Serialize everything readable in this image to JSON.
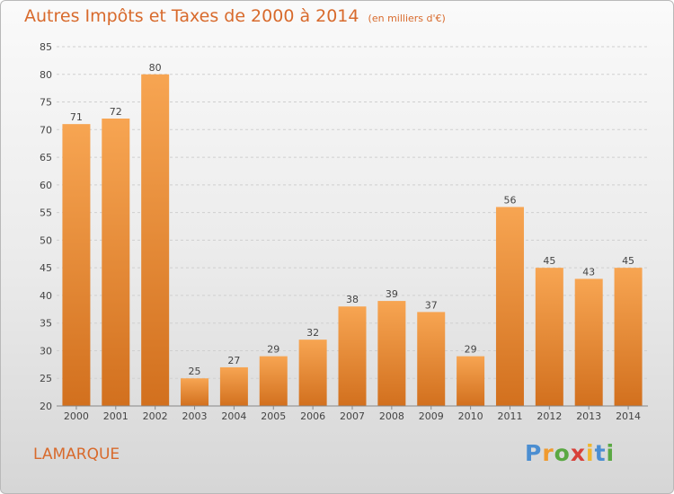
{
  "title": "Autres Impôts et Taxes de 2000 à 2014",
  "subtitle": "(en milliers d'€)",
  "commune": "LAMARQUE",
  "logo": {
    "text": "Proxiti",
    "letters": [
      "P",
      "r",
      "o",
      "x",
      "i",
      "t",
      "i"
    ],
    "colors": [
      "#4b8ed1",
      "#f09a2e",
      "#5aa843",
      "#d8413a",
      "#f0b62e",
      "#4b8ed1",
      "#5aa843"
    ]
  },
  "colors": {
    "bar_light": "#f7a552",
    "bar_dark": "#d2701e",
    "title": "#d86a2c"
  },
  "chart_data": {
    "type": "bar",
    "categories": [
      "2000",
      "2001",
      "2002",
      "2003",
      "2004",
      "2005",
      "2006",
      "2007",
      "2008",
      "2009",
      "2010",
      "2011",
      "2012",
      "2013",
      "2014"
    ],
    "values": [
      71,
      72,
      80,
      25,
      27,
      29,
      32,
      38,
      39,
      37,
      29,
      56,
      45,
      43,
      45
    ],
    "title": "Autres Impôts et Taxes de 2000 à 2014",
    "xlabel": "",
    "ylabel": "",
    "ylim": [
      20,
      85
    ],
    "yticks": [
      20,
      25,
      30,
      35,
      40,
      45,
      50,
      55,
      60,
      65,
      70,
      75,
      80,
      85
    ],
    "grid": true,
    "data_labels": true
  }
}
